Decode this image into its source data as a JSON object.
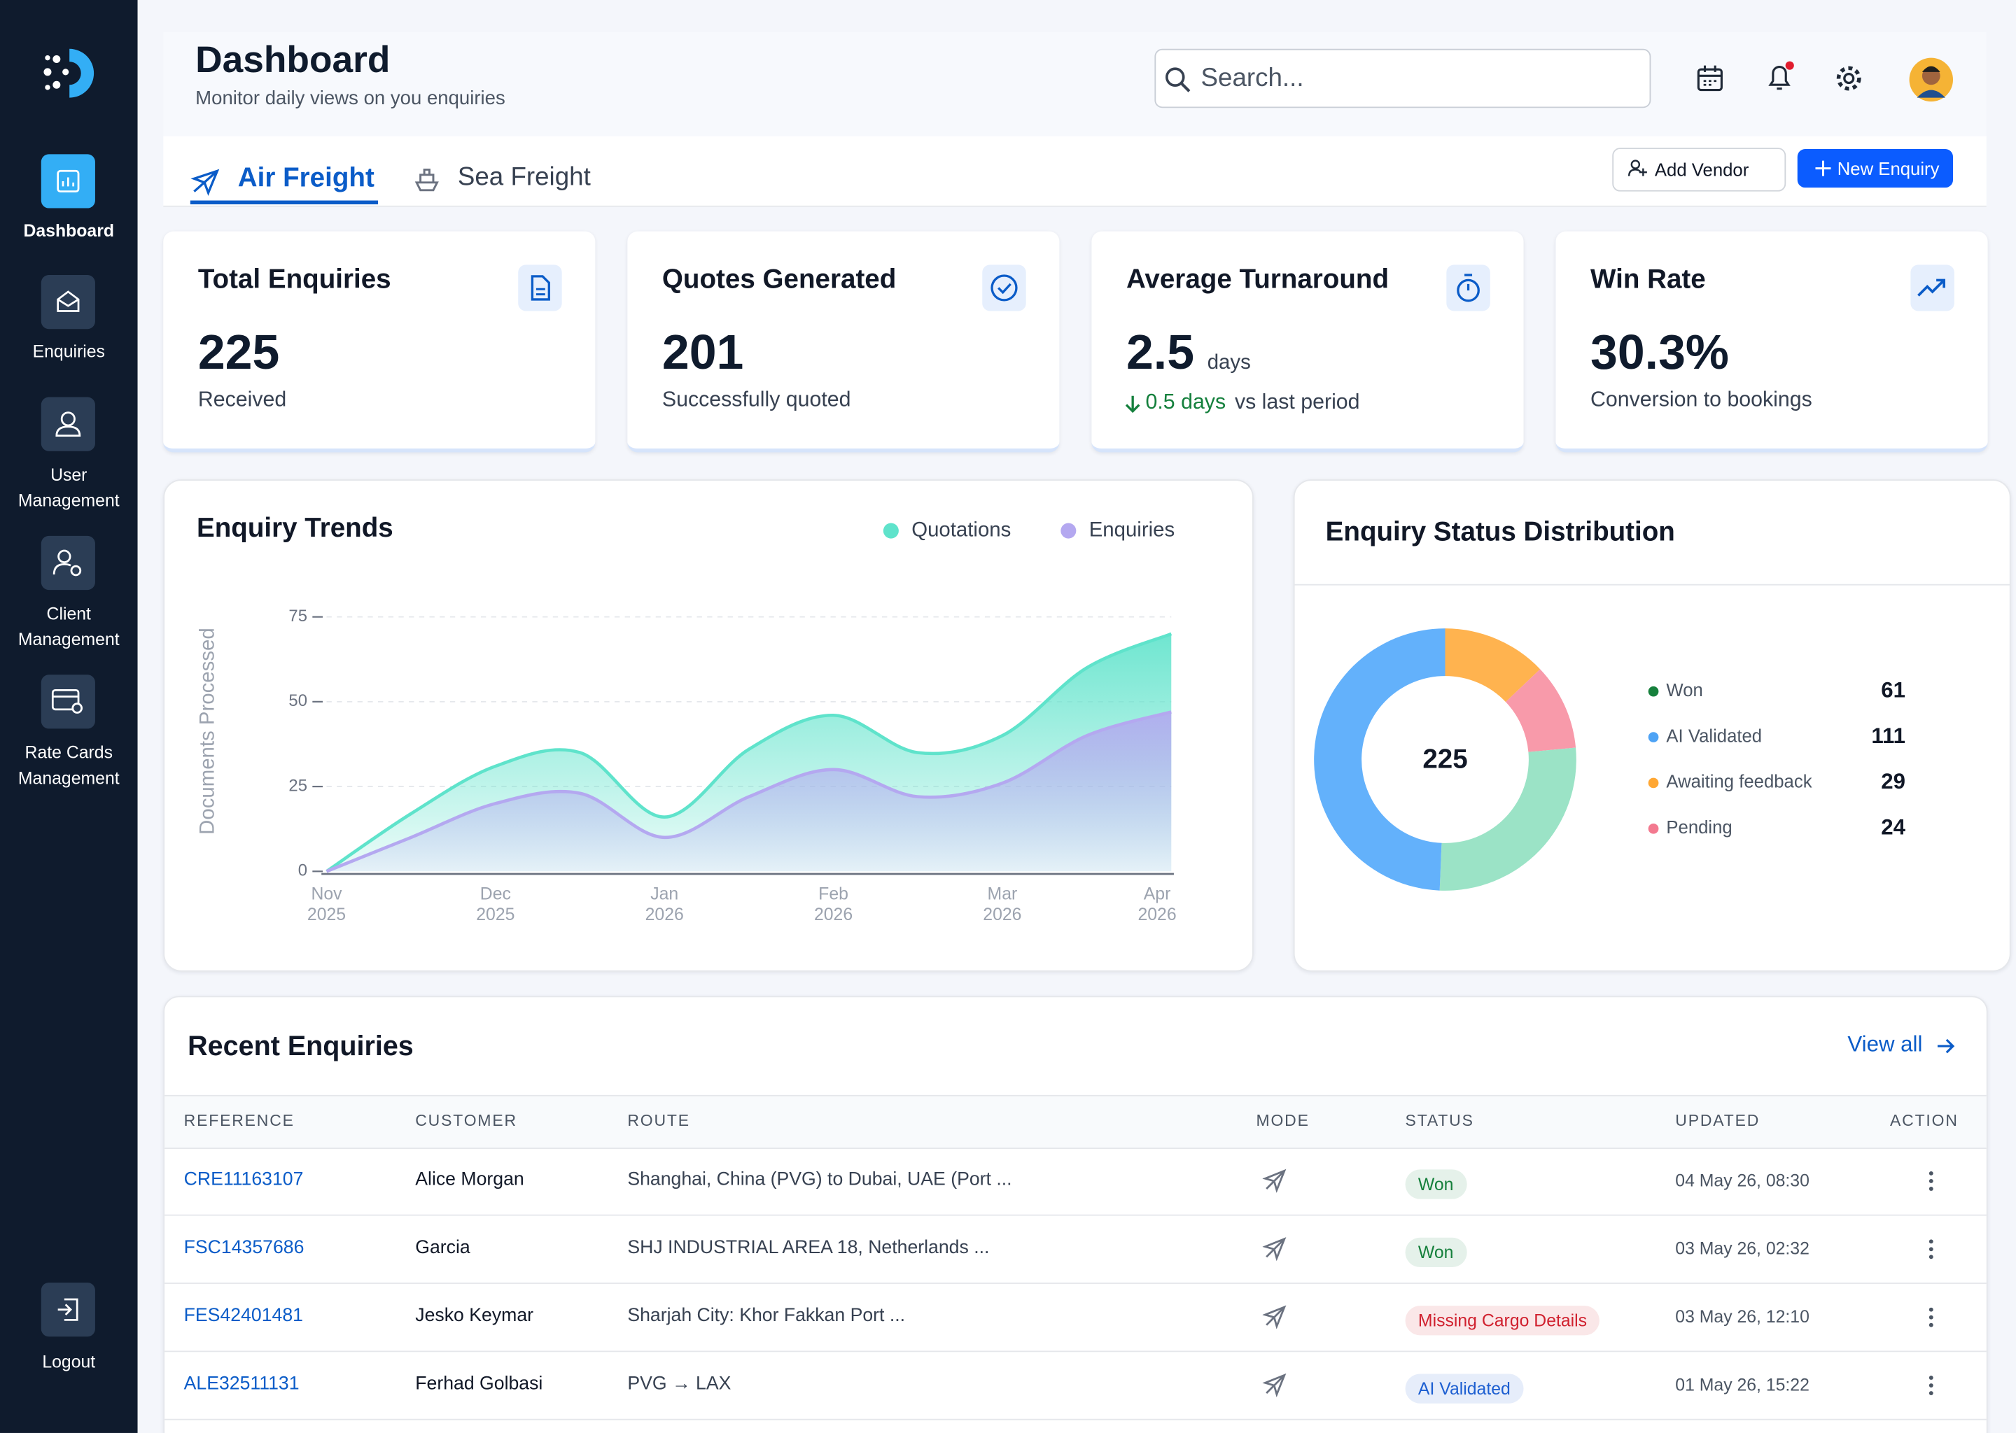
{
  "sidebar": {
    "items": [
      "Dashboard",
      "Enquiries",
      "User Management",
      "Client Management",
      "Rate Cards Management"
    ],
    "logout": "Logout"
  },
  "header": {
    "title": "Dashboard",
    "subtitle": "Monitor daily views on you enquiries",
    "search_placeholder": "Search..."
  },
  "tabs": [
    "Air Freight",
    "Sea Freight"
  ],
  "buttons": {
    "add_vendor": "Add Vendor",
    "new_enquiry": "New Enquiry"
  },
  "stats": [
    {
      "title": "Total Enquiries",
      "value": "225",
      "note": "Received"
    },
    {
      "title": "Quotes Generated",
      "value": "201",
      "note": "Successfully quoted"
    },
    {
      "title": "Average Turnaround",
      "value": "2.5",
      "unit": "days",
      "change": "0.5 days",
      "note": "vs last period"
    },
    {
      "title": "Win Rate",
      "value": "30.3%",
      "note": "Conversion to bookings"
    }
  ],
  "trend_chart": {
    "type": "area",
    "title": "Enquiry Trends",
    "y_label": "Documents Processed",
    "categories": [
      "Nov 2025",
      null,
      "Dec 2025",
      null,
      "Jan 2026",
      null,
      "Feb 2026",
      null,
      "Mar 2026",
      null,
      "Apr 2026"
    ],
    "series": [
      {
        "name": "Quotations",
        "color": "#5fe3cb",
        "values": [
          0,
          17,
          31,
          35,
          16,
          36,
          46,
          35,
          40,
          60,
          70
        ]
      },
      {
        "name": "Enquiries",
        "color": "#b4a8f0",
        "values": [
          0,
          10,
          20,
          23,
          10,
          22,
          30,
          22,
          26,
          40,
          47
        ]
      }
    ],
    "ylim": [
      0,
      75
    ],
    "yticks": [
      0,
      25,
      50,
      75
    ],
    "grid": true
  },
  "status_chart": {
    "type": "donut",
    "title": "Enquiry Status Distribution",
    "center_label": "225",
    "categories": [
      "Won",
      "AI Validated",
      "Awaiting feedback",
      "Pending"
    ],
    "values": [
      61,
      111,
      29,
      24
    ],
    "colors": [
      "#9be3c6",
      "#63b1fb",
      "#ffb34f",
      "#f89aaa"
    ],
    "legend_colors": [
      "#16803c",
      "#4ea3f5",
      "#ffa733",
      "#f3798f"
    ]
  },
  "table": {
    "title": "Recent Enquiries",
    "view_all": "View all",
    "columns": [
      "REFERENCE",
      "CUSTOMER",
      "ROUTE",
      "MODE",
      "STATUS",
      "UPDATED",
      "ACTION"
    ],
    "rows": [
      {
        "reference": "CRE11163107",
        "customer": "Alice Morgan",
        "route": "Shanghai, China (PVG) to Dubai, UAE (Port ...",
        "status": "Won",
        "status_color": "#16803c",
        "updated": "04 May 26, 08:30"
      },
      {
        "reference": "FSC14357686",
        "customer": "Garcia",
        "route": "SHJ INDUSTRIAL AREA 18, Netherlands ...",
        "status": "Won",
        "status_color": "#16803c",
        "updated": "03 May 26, 02:32"
      },
      {
        "reference": "FES42401481",
        "customer": "Jesko Keymar",
        "route": "Sharjah City: Khor Fakkan Port ...",
        "status": "Missing Cargo Details",
        "status_color": "#d0212f",
        "updated": "03 May 26, 12:10"
      },
      {
        "reference": "ALE32511131",
        "customer": "Ferhad Golbasi",
        "route": "PVG → LAX",
        "status": "AI Validated",
        "status_color": "#1d5fd1",
        "updated": "01 May 26, 15:22"
      }
    ]
  }
}
